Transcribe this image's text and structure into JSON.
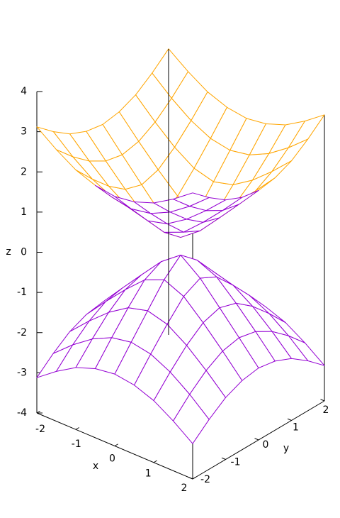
{
  "chart_data": {
    "type": "surface3d",
    "xlabel": "x",
    "ylabel": "y",
    "zlabel": "z",
    "x": [
      -2,
      -1.5,
      -1,
      -0.5,
      0,
      0.5,
      1,
      1.5,
      2
    ],
    "y": [
      -2,
      -1.5,
      -1,
      -0.5,
      0,
      0.5,
      1,
      1.5,
      2
    ],
    "xlim": [
      -2,
      2
    ],
    "ylim": [
      -2,
      2
    ],
    "zlim": [
      -4,
      4
    ],
    "xticks": [
      -2,
      -1,
      0,
      1,
      2
    ],
    "yticks": [
      -2,
      -1,
      0,
      1,
      2
    ],
    "zticks": [
      -4,
      -3,
      -2,
      -1,
      0,
      1,
      2,
      3,
      4
    ],
    "series": [
      {
        "color": "#ffa500",
        "back_color": "#9400d3",
        "z": [
          [
            3.12,
            2.76,
            2.46,
            2.28,
            2.21,
            2.28,
            2.46,
            2.76,
            3.12
          ],
          [
            2.76,
            2.34,
            1.99,
            1.75,
            1.66,
            1.75,
            1.99,
            2.34,
            2.76
          ],
          [
            2.46,
            1.99,
            1.57,
            1.25,
            1.12,
            1.25,
            1.57,
            1.99,
            2.46
          ],
          [
            2.28,
            1.75,
            1.25,
            0.8,
            0.59,
            0.8,
            1.25,
            1.75,
            2.28
          ],
          [
            2.21,
            1.66,
            1.12,
            0.59,
            0.22,
            0.59,
            1.12,
            1.66,
            2.21
          ],
          [
            2.28,
            1.75,
            1.25,
            0.8,
            0.59,
            0.8,
            1.25,
            1.75,
            2.28
          ],
          [
            2.46,
            1.99,
            1.57,
            1.25,
            1.12,
            1.25,
            1.57,
            1.99,
            2.46
          ],
          [
            2.76,
            2.34,
            1.99,
            1.75,
            1.66,
            1.75,
            1.99,
            2.34,
            2.76
          ],
          [
            3.12,
            2.76,
            2.46,
            2.28,
            2.21,
            2.28,
            2.46,
            2.76,
            3.12
          ]
        ]
      },
      {
        "color": "#9400d3",
        "back_color": "#9400d3",
        "z": [
          [
            -3.12,
            -2.76,
            -2.46,
            -2.28,
            -2.21,
            -2.28,
            -2.46,
            -2.76,
            -3.12
          ],
          [
            -2.76,
            -2.34,
            -1.99,
            -1.75,
            -1.66,
            -1.75,
            -1.99,
            -2.34,
            -2.76
          ],
          [
            -2.46,
            -1.99,
            -1.57,
            -1.25,
            -1.12,
            -1.25,
            -1.57,
            -1.99,
            -2.46
          ],
          [
            -2.28,
            -1.75,
            -1.25,
            -0.8,
            -0.59,
            -0.8,
            -1.25,
            -1.75,
            -2.28
          ],
          [
            -2.21,
            -1.66,
            -1.12,
            -0.59,
            -0.22,
            -0.59,
            -1.12,
            -1.66,
            -2.21
          ],
          [
            -2.28,
            -1.75,
            -1.25,
            -0.8,
            -0.59,
            -0.8,
            -1.25,
            -1.75,
            -2.28
          ],
          [
            -2.46,
            -1.99,
            -1.57,
            -1.25,
            -1.12,
            -1.25,
            -1.57,
            -1.99,
            -2.46
          ],
          [
            -2.76,
            -2.34,
            -1.99,
            -1.75,
            -1.66,
            -1.75,
            -1.99,
            -2.34,
            -2.76
          ],
          [
            -3.12,
            -2.76,
            -2.46,
            -2.28,
            -2.21,
            -2.28,
            -2.46,
            -2.76,
            -3.12
          ]
        ]
      }
    ]
  }
}
